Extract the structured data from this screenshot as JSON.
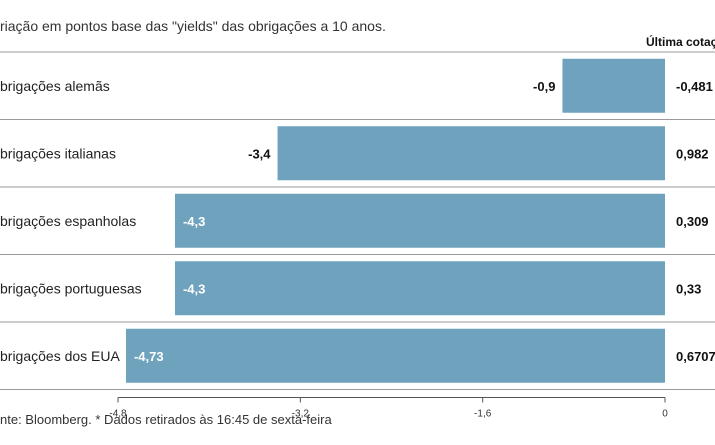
{
  "chart_data": {
    "type": "bar",
    "orientation": "horizontal",
    "subtitle": "riação em pontos base das \"yields\" das obrigações a 10 anos.",
    "last_column_header": "Última cotaç",
    "categories": [
      "brigações alemãs",
      "brigações italianas",
      "brigações espanholas",
      "brigações portuguesas",
      "brigações dos EUA"
    ],
    "values": [
      -0.9,
      -3.4,
      -4.3,
      -4.3,
      -4.73
    ],
    "value_labels": [
      "-0,9",
      "-3,4",
      "-4,3",
      "-4,3",
      "-4,73"
    ],
    "last_quote_labels": [
      "-0,481",
      "0,982",
      "0,309",
      "0,33",
      "0,6707"
    ],
    "xticks": [
      -4.8,
      -3.2,
      -1.6,
      0
    ],
    "xtick_labels": [
      "-4,8",
      "-3,2",
      "-1,6",
      "0"
    ],
    "xlim": [
      -4.8,
      0
    ],
    "grid": false,
    "colors": {
      "bar": "#6fa3bd",
      "row_divider": "#9a9a9a",
      "axis": "#555555"
    },
    "source": "nte: Bloomberg.  * Dados retirados às 16:45 de sexta-feira"
  }
}
